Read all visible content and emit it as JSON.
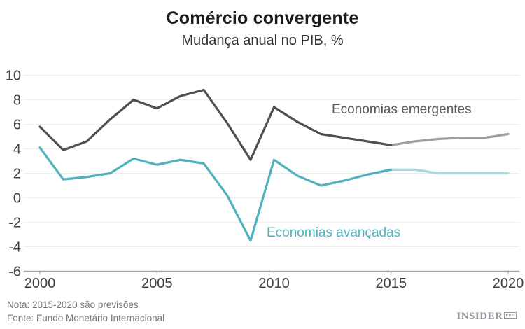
{
  "title": "Comércio convergente",
  "subtitle": "Mudança anual no PIB, %",
  "annotations": {
    "emergentes": "Economias emergentes",
    "avancadas": "Economias avançadas"
  },
  "footer": {
    "note": "Nota: 2015-2020 são previsões",
    "source": "Fonte: Fundo Monetário Internacional"
  },
  "logo": {
    "word": "INSIDER",
    "pro": "PRO"
  },
  "colors": {
    "emergentes_solid": "#4f4f4f",
    "emergentes_forecast": "#9f9f9f",
    "avancadas_solid": "#4fb2bc",
    "avancadas_forecast": "#a8d8dc",
    "gridline": "#ececec",
    "axis": "#a9a9a9",
    "tick": "#b0b0b0",
    "tick_label": "#404040"
  },
  "chart_data": {
    "type": "line",
    "title": "Comércio convergente",
    "subtitle": "Mudança anual no PIB, %",
    "xlabel": "",
    "ylabel": "Mudança anual no PIB, %",
    "x": [
      2000,
      2001,
      2002,
      2003,
      2004,
      2005,
      2006,
      2007,
      2008,
      2009,
      2010,
      2011,
      2012,
      2013,
      2014,
      2015,
      2016,
      2017,
      2018,
      2019,
      2020
    ],
    "series": [
      {
        "name": "Economias emergentes",
        "values": [
          5.8,
          3.9,
          4.6,
          6.4,
          8.0,
          7.3,
          8.3,
          8.8,
          6.1,
          3.1,
          7.4,
          6.2,
          5.2,
          4.9,
          4.6,
          4.3,
          4.6,
          4.8,
          4.9,
          4.9,
          5.2
        ]
      },
      {
        "name": "Economias avançadas",
        "values": [
          4.1,
          1.5,
          1.7,
          2.0,
          3.2,
          2.7,
          3.1,
          2.8,
          0.2,
          -3.5,
          3.1,
          1.8,
          1.0,
          1.4,
          1.9,
          2.3,
          2.3,
          2.0,
          2.0,
          2.0,
          2.0
        ]
      }
    ],
    "forecast_from": 2015,
    "forecast_note": "2015-2020 são previsões",
    "x_ticks": [
      2000,
      2005,
      2010,
      2015,
      2020
    ],
    "y_ticks": [
      10,
      8,
      6,
      4,
      2,
      0,
      -2,
      -4,
      -6
    ],
    "xlim": [
      2000,
      2020
    ],
    "ylim": [
      -6,
      10
    ],
    "grid": true,
    "legend_position": "inline-annotations"
  }
}
